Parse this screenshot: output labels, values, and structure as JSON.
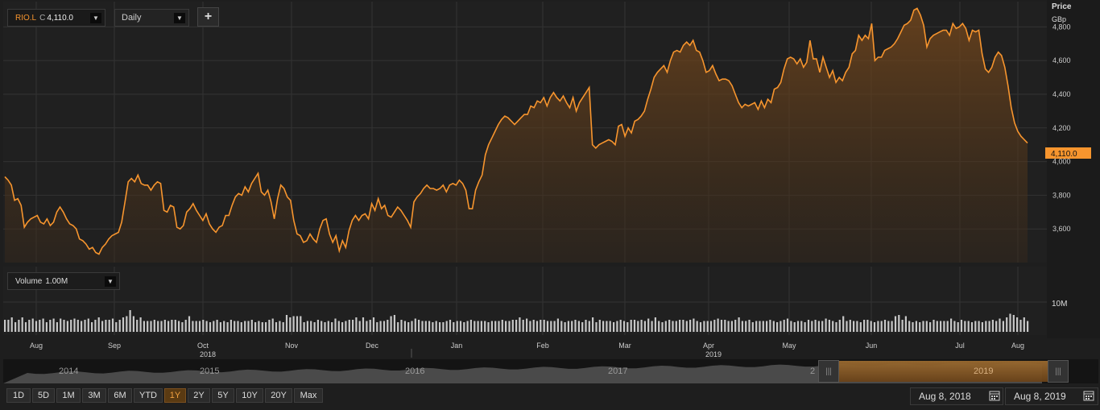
{
  "symbol": {
    "ticker": "RIO.L",
    "close_prefix": "C",
    "close_value": "4,110.0"
  },
  "interval": {
    "label": "Daily"
  },
  "add_button": {
    "label": "+"
  },
  "axis": {
    "price_label": "Price",
    "currency_label": "GBp",
    "current_price_tag": "4,110.0",
    "volume_tick": "10M"
  },
  "volume_panel": {
    "label": "Volume",
    "value": "1.00M"
  },
  "navigator": {
    "years": [
      "2014",
      "2015",
      "2016",
      "2017",
      "2",
      "2019"
    ]
  },
  "range_buttons": [
    {
      "label": "1D",
      "active": false
    },
    {
      "label": "5D",
      "active": false
    },
    {
      "label": "1M",
      "active": false
    },
    {
      "label": "3M",
      "active": false
    },
    {
      "label": "6M",
      "active": false
    },
    {
      "label": "YTD",
      "active": false
    },
    {
      "label": "1Y",
      "active": true
    },
    {
      "label": "2Y",
      "active": false
    },
    {
      "label": "5Y",
      "active": false
    },
    {
      "label": "10Y",
      "active": false
    },
    {
      "label": "20Y",
      "active": false
    },
    {
      "label": "Max",
      "active": false
    }
  ],
  "date_range": {
    "start": "Aug 8, 2018",
    "end": "Aug 8, 2019"
  },
  "colors": {
    "accent": "#f7952e",
    "price_tag_bg": "#f7952e",
    "volume_bar": "#c8c8c8",
    "active_btn": "#5a3a12"
  },
  "chart_data": {
    "type": "area",
    "title": "",
    "ylabel": "Price GBp",
    "ylim": [
      3400,
      4950
    ],
    "yticks": [
      "3,600",
      "3,800",
      "4,000",
      "4,200",
      "4,400",
      "4,600",
      "4,800"
    ],
    "ytick_values": [
      3600,
      3800,
      4000,
      4200,
      4400,
      4600,
      4800
    ],
    "x_month_labels": [
      "Aug",
      "Sep",
      "Oct",
      "Nov",
      "Dec",
      "Jan",
      "Feb",
      "Mar",
      "Apr",
      "May",
      "Jun",
      "Jul",
      "Aug"
    ],
    "x_year_labels": [
      "2018",
      "2019"
    ],
    "x_year_label_after_month": [
      "Oct",
      "Apr"
    ],
    "series": [
      {
        "values": [
          3910,
          3890,
          3860,
          3770,
          3780,
          3740,
          3610,
          3640,
          3660,
          3670,
          3680,
          3640,
          3630,
          3660,
          3620,
          3640,
          3700,
          3730,
          3700,
          3660,
          3630,
          3620,
          3600,
          3540,
          3530,
          3510,
          3480,
          3490,
          3460,
          3450,
          3490,
          3510,
          3540,
          3560,
          3570,
          3580,
          3640,
          3760,
          3880,
          3900,
          3880,
          3920,
          3870,
          3860,
          3860,
          3830,
          3860,
          3880,
          3870,
          3710,
          3700,
          3740,
          3730,
          3610,
          3600,
          3620,
          3700,
          3720,
          3750,
          3710,
          3680,
          3650,
          3690,
          3630,
          3600,
          3580,
          3610,
          3620,
          3680,
          3680,
          3740,
          3790,
          3810,
          3800,
          3850,
          3820,
          3870,
          3900,
          3930,
          3820,
          3800,
          3830,
          3760,
          3660,
          3780,
          3860,
          3840,
          3790,
          3770,
          3650,
          3570,
          3560,
          3520,
          3530,
          3570,
          3540,
          3520,
          3600,
          3650,
          3660,
          3570,
          3520,
          3560,
          3470,
          3530,
          3490,
          3590,
          3650,
          3680,
          3650,
          3680,
          3690,
          3660,
          3750,
          3710,
          3780,
          3720,
          3740,
          3680,
          3670,
          3700,
          3730,
          3710,
          3680,
          3650,
          3610,
          3760,
          3790,
          3810,
          3840,
          3860,
          3840,
          3840,
          3830,
          3840,
          3860,
          3820,
          3860,
          3870,
          3860,
          3890,
          3870,
          3830,
          3720,
          3720,
          3830,
          3880,
          3920,
          4040,
          4100,
          4140,
          4180,
          4220,
          4250,
          4270,
          4260,
          4240,
          4220,
          4240,
          4260,
          4280,
          4280,
          4330,
          4320,
          4360,
          4350,
          4380,
          4330,
          4380,
          4410,
          4380,
          4360,
          4390,
          4350,
          4320,
          4380,
          4300,
          4350,
          4380,
          4410,
          4440,
          4100,
          4080,
          4100,
          4110,
          4120,
          4130,
          4120,
          4100,
          4210,
          4220,
          4150,
          4200,
          4170,
          4240,
          4250,
          4270,
          4300,
          4370,
          4430,
          4500,
          4530,
          4550,
          4570,
          4530,
          4600,
          4650,
          4660,
          4650,
          4690,
          4710,
          4690,
          4720,
          4660,
          4650,
          4600,
          4530,
          4540,
          4570,
          4520,
          4480,
          4490,
          4490,
          4480,
          4450,
          4400,
          4350,
          4320,
          4340,
          4330,
          4340,
          4350,
          4310,
          4360,
          4320,
          4370,
          4350,
          4430,
          4440,
          4470,
          4550,
          4610,
          4620,
          4610,
          4580,
          4610,
          4560,
          4590,
          4720,
          4610,
          4610,
          4530,
          4620,
          4560,
          4500,
          4540,
          4470,
          4500,
          4480,
          4530,
          4560,
          4640,
          4660,
          4750,
          4720,
          4750,
          4730,
          4820,
          4600,
          4620,
          4620,
          4660,
          4670,
          4680,
          4700,
          4730,
          4770,
          4810,
          4820,
          4840,
          4900,
          4910,
          4870,
          4810,
          4680,
          4730,
          4750,
          4760,
          4770,
          4780,
          4780,
          4750,
          4820,
          4790,
          4800,
          4820,
          4790,
          4720,
          4780,
          4770,
          4780,
          4640,
          4550,
          4530,
          4560,
          4620,
          4650,
          4630,
          4560,
          4450,
          4320,
          4230,
          4180,
          4150,
          4130,
          4110
        ]
      }
    ],
    "volume_values": [
      1.0,
      1.0,
      1.2,
      0.8,
      1.0,
      1.2,
      0.8,
      1.0,
      1.1,
      0.9,
      1.0,
      1.1,
      0.8,
      1.0,
      1.1,
      0.8,
      1.1,
      1.0,
      0.9,
      1.0,
      1.1,
      1.0,
      0.9,
      1.0,
      1.1,
      0.8,
      1.0,
      1.2,
      0.9,
      1.0,
      1.0,
      1.1,
      0.8,
      1.0,
      1.2,
      1.3,
      1.8,
      1.3,
      1.0,
      1.2,
      0.9,
      0.9,
      0.9,
      1.0,
      0.9,
      0.9,
      1.0,
      0.9,
      1.0,
      1.0,
      0.9,
      0.8,
      1.0,
      1.3,
      0.9,
      0.9,
      0.9,
      1.0,
      0.9,
      0.8,
      0.9,
      1.0,
      0.8,
      0.9,
      0.8,
      1.0,
      0.9,
      0.9,
      0.8,
      0.9,
      0.9,
      1.0,
      0.8,
      0.9,
      0.8,
      0.8,
      1.0,
      1.1,
      0.8,
      0.9,
      0.8,
      1.4,
      1.2,
      1.3,
      1.3,
      1.3,
      0.8,
      0.9,
      0.9,
      0.8,
      1.0,
      0.9,
      0.8,
      0.9,
      0.8,
      1.1,
      0.9,
      0.8,
      0.9,
      1.0,
      1.0,
      1.2,
      0.9,
      1.2,
      0.9,
      1.0,
      1.2,
      0.8,
      0.9,
      0.9,
      1.0,
      1.3,
      1.4,
      0.8,
      1.0,
      0.9,
      0.8,
      0.9,
      1.1,
      1.0,
      0.9,
      0.9,
      0.9,
      0.8,
      0.9,
      0.8,
      0.8,
      0.9,
      1.0,
      0.8,
      0.9,
      0.9,
      0.8,
      0.9,
      1.0,
      0.9,
      0.9,
      0.9,
      0.9,
      0.8,
      0.9,
      0.9,
      0.9,
      1.0,
      0.9,
      0.9,
      1.0,
      1.0,
      1.2,
      1.0,
      1.1,
      0.9,
      1.0,
      0.9,
      1.0,
      1.0,
      0.9,
      0.9,
      0.9,
      1.1,
      0.9,
      0.8,
      0.9,
      0.9,
      1.0,
      0.9,
      0.8,
      1.0,
      0.9,
      1.2,
      0.8,
      1.0,
      0.9,
      0.9,
      0.9,
      0.8,
      0.9,
      1.0,
      0.9,
      0.8,
      1.0,
      1.0,
      0.9,
      1.0,
      0.9,
      1.1,
      0.9,
      1.2,
      0.9,
      0.8,
      0.9,
      1.0,
      0.9,
      0.9,
      1.0,
      1.0,
      0.9,
      1.0,
      1.1,
      0.9,
      0.8,
      0.9,
      0.9,
      0.9,
      1.0,
      1.1,
      1.0,
      1.0,
      0.9,
      0.9,
      1.0,
      1.2,
      0.9,
      0.9,
      1.0,
      0.8,
      0.9,
      0.9,
      0.9,
      0.9,
      1.0,
      0.9,
      0.8,
      0.9,
      1.0,
      1.1,
      0.9,
      0.8,
      0.9,
      0.9,
      0.8,
      1.0,
      0.9,
      1.0,
      0.9,
      0.9,
      1.1,
      1.0,
      0.9,
      0.8,
      1.0,
      1.3,
      0.9,
      1.0,
      0.9,
      0.9,
      0.8,
      1.0,
      1.0,
      0.9,
      0.8,
      0.9,
      0.9,
      1.0,
      0.9,
      0.9,
      1.3,
      1.4,
      1.0,
      1.3,
      0.9,
      0.8,
      0.9,
      0.8,
      0.9,
      0.9,
      0.8,
      1.0,
      0.9,
      0.9,
      0.9,
      0.9,
      1.1,
      0.9,
      0.8,
      1.0,
      0.9,
      0.9,
      0.8,
      0.9,
      0.9,
      0.8,
      0.9,
      0.9,
      1.0,
      0.9,
      1.1,
      0.9,
      1.2,
      1.5,
      1.4,
      1.2,
      1.0,
      1.2,
      0.9
    ]
  }
}
